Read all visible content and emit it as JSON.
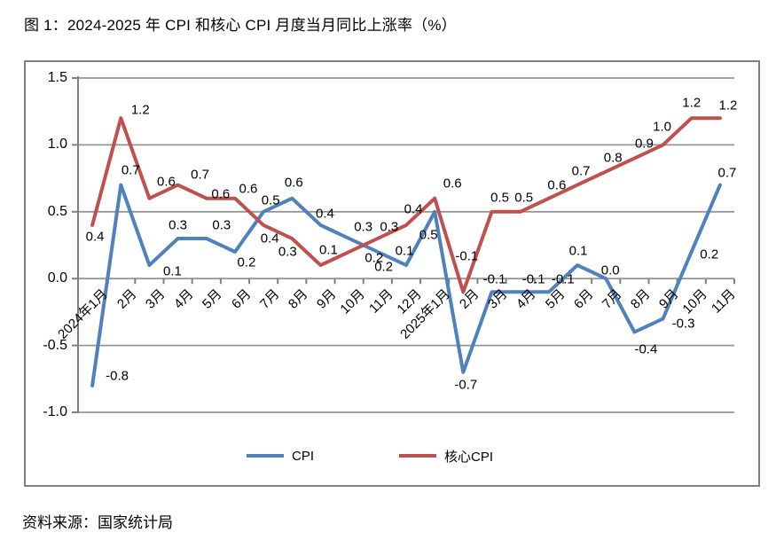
{
  "page": {
    "title": "图 1：2024-2025 年 CPI 和核心 CPI 月度当月同比上涨率（%）",
    "source": "资料来源：国家统计局"
  },
  "colors": {
    "cpi": "#4F81BD",
    "core_cpi": "#C0504D",
    "grid": "#969696",
    "axis": "#808080",
    "frame": "#808080",
    "text": "#000000"
  },
  "chart_data": {
    "type": "line",
    "title": "图 1：2024-2025 年 CPI 和核心 CPI 月度当月同比上涨率（%）",
    "xlabel": "",
    "ylabel": "",
    "categories": [
      "2024年1月",
      "2月",
      "3月",
      "4月",
      "5月",
      "6月",
      "7月",
      "8月",
      "9月",
      "10月",
      "11月",
      "12月",
      "2025年1月",
      "2月",
      "3月",
      "4月",
      "5月",
      "6月",
      "7月",
      "8月",
      "9月",
      "10月",
      "11月"
    ],
    "series": [
      {
        "name": "CPI",
        "color_key": "cpi",
        "values": [
          -0.8,
          0.7,
          0.1,
          0.3,
          0.3,
          0.2,
          0.5,
          0.6,
          0.4,
          0.3,
          0.2,
          0.1,
          0.5,
          -0.7,
          -0.1,
          -0.1,
          -0.1,
          0.1,
          0.0,
          -0.4,
          -0.3,
          0.2,
          0.7
        ],
        "label_offsets": [
          [
            28,
            -11
          ],
          [
            11,
            -17
          ],
          [
            26,
            7
          ],
          [
            0,
            -15
          ],
          [
            17,
            -15
          ],
          [
            13,
            12
          ],
          [
            8,
            -13
          ],
          [
            2,
            -18
          ],
          [
            5,
            -13
          ],
          [
            16,
            -13
          ],
          [
            -4,
            7
          ],
          [
            -2,
            -16
          ],
          [
            -7,
            26
          ],
          [
            3,
            14
          ],
          [
            3,
            -14
          ],
          [
            15,
            -14
          ],
          [
            16,
            -14
          ],
          [
            1,
            -16
          ],
          [
            5,
            -9
          ],
          [
            13,
            19
          ],
          [
            23,
            6
          ],
          [
            20,
            3
          ],
          [
            8,
            -14
          ]
        ]
      },
      {
        "name": "核心CPI",
        "color_key": "core_cpi",
        "values": [
          0.4,
          1.2,
          0.6,
          0.7,
          0.6,
          0.6,
          0.4,
          0.3,
          0.1,
          0.2,
          0.3,
          0.4,
          0.6,
          -0.1,
          0.5,
          0.5,
          0.6,
          0.7,
          0.8,
          0.9,
          1.0,
          1.2,
          1.2
        ],
        "label_offsets": [
          [
            3,
            13
          ],
          [
            22,
            -9
          ],
          [
            19,
            -19
          ],
          [
            25,
            -12
          ],
          [
            16,
            -5
          ],
          [
            15,
            -11
          ],
          [
            7,
            15
          ],
          [
            -5,
            15
          ],
          [
            9,
            -17
          ],
          [
            39,
            17
          ],
          [
            13,
            -13
          ],
          [
            8,
            -18
          ],
          [
            20,
            -17
          ],
          [
            4,
            -40
          ],
          [
            9,
            -16
          ],
          [
            4,
            -16
          ],
          [
            9,
            -15
          ],
          [
            4,
            -16
          ],
          [
            8,
            -16
          ],
          [
            11,
            -16
          ],
          [
            -1,
            -20
          ],
          [
            0,
            -17
          ],
          [
            9,
            -14
          ]
        ]
      }
    ],
    "y_ticks": [
      1.5,
      1.0,
      0.5,
      0.0,
      -0.5,
      -1.0
    ],
    "y_tick_labels": [
      "1.5",
      "1.0",
      "0.5",
      "0.0",
      "-0.5",
      "-1.0"
    ],
    "ylim": [
      -1.0,
      1.5
    ],
    "grid": true,
    "legend_position": "bottom-center"
  }
}
